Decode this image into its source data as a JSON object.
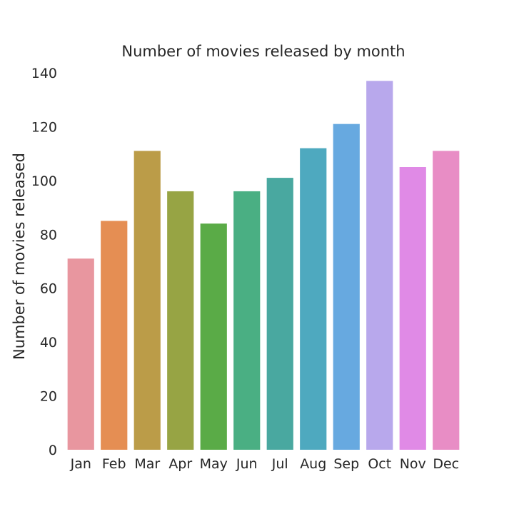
{
  "chart_data": {
    "type": "bar",
    "title": "Number of movies released by month",
    "xlabel": "",
    "ylabel": "Number of movies released",
    "categories": [
      "Jan",
      "Feb",
      "Mar",
      "Apr",
      "May",
      "Jun",
      "Jul",
      "Aug",
      "Sep",
      "Oct",
      "Nov",
      "Dec"
    ],
    "values": [
      71,
      85,
      111,
      96,
      84,
      96,
      101,
      112,
      121,
      137,
      105,
      111
    ],
    "ylim": [
      0,
      140
    ],
    "yticks": [
      0,
      20,
      40,
      60,
      80,
      100,
      120,
      140
    ],
    "colors": [
      "#e8969f",
      "#e58e53",
      "#bb9c48",
      "#97a444",
      "#5aab47",
      "#4aaf83",
      "#49a8a0",
      "#4ea9bf",
      "#67a9e0",
      "#b8a8ec",
      "#e08ae6",
      "#e88dc5"
    ],
    "grid": false,
    "legend": "none"
  }
}
